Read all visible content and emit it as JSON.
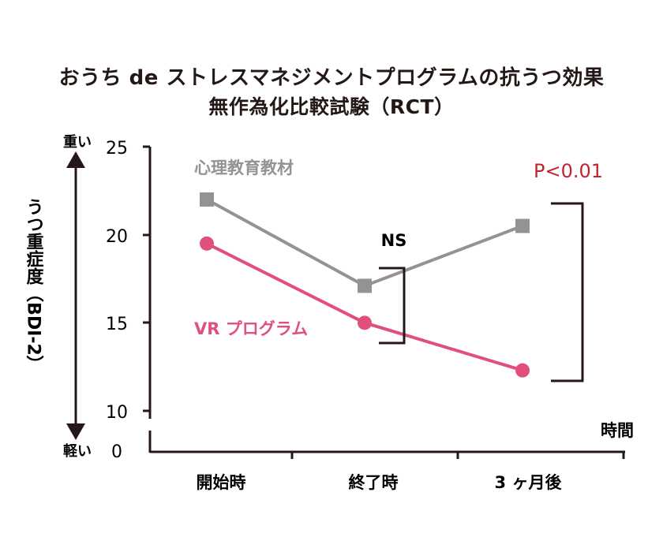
{
  "title_line1": "おうち de ストレスマネジメントプログラムの抗うつ効果",
  "title_line2": "無作為化比較試験（RCT）",
  "chart_data": {
    "type": "line",
    "categories": [
      "開始時",
      "終了時",
      "3 ヶ月後"
    ],
    "series": [
      {
        "name": "心理教育教材",
        "values": [
          22.0,
          17.1,
          20.5
        ],
        "color": "#939393",
        "marker": "square"
      },
      {
        "name": "VR プログラム",
        "values": [
          19.5,
          15.0,
          12.3
        ],
        "color": "#e0507a",
        "marker": "circle"
      }
    ],
    "y_ticks": [
      "25",
      "20",
      "15",
      "10",
      "0"
    ],
    "ylim": [
      10,
      25
    ],
    "ylabel": "うつ重症度（BDI-2）",
    "y_top_label": "重い",
    "y_bottom_label": "軽い",
    "xlabel": "時間",
    "annotations": {
      "ns": "NS",
      "p_value": "P<0.01",
      "p_value_color": "#c0242f"
    },
    "axis_break": true
  }
}
